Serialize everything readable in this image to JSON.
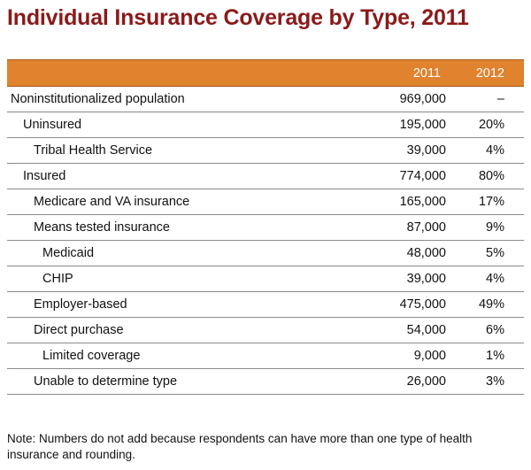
{
  "title": "Individual Insurance Coverage by Type, 2011",
  "table": {
    "headers": [
      "",
      "2011",
      "2012"
    ],
    "rows": [
      {
        "label": "Noninstitutionalized population",
        "indent": 0,
        "v2011": "969,000",
        "v2012": "–"
      },
      {
        "label": "Uninsured",
        "indent": 1,
        "v2011": "195,000",
        "v2012": "20%"
      },
      {
        "label": "Tribal Health Service",
        "indent": 2,
        "v2011": "39,000",
        "v2012": "4%"
      },
      {
        "label": "Insured",
        "indent": 1,
        "v2011": "774,000",
        "v2012": "80%"
      },
      {
        "label": "Medicare and VA insurance",
        "indent": 2,
        "v2011": "165,000",
        "v2012": "17%"
      },
      {
        "label": "Means tested insurance",
        "indent": 2,
        "v2011": "87,000",
        "v2012": "9%"
      },
      {
        "label": "Medicaid",
        "indent": 3,
        "v2011": "48,000",
        "v2012": "5%"
      },
      {
        "label": "CHIP",
        "indent": 3,
        "v2011": "39,000",
        "v2012": "4%"
      },
      {
        "label": "Employer-based",
        "indent": 2,
        "v2011": "475,000",
        "v2012": "49%"
      },
      {
        "label": "Direct purchase",
        "indent": 2,
        "v2011": "54,000",
        "v2012": "6%"
      },
      {
        "label": "Limited coverage",
        "indent": 3,
        "v2011": "9,000",
        "v2012": "1%"
      },
      {
        "label": "Unable to determine type",
        "indent": 2,
        "v2011": "26,000",
        "v2012": "3%"
      }
    ]
  },
  "note": "Note: Numbers do not add because respondents can have more than one type of health insurance and rounding.",
  "colors": {
    "title": "#8b1a1a",
    "header_bg": "#e0822e",
    "header_text": "#ffffff",
    "rule": "#8a8a8a"
  }
}
